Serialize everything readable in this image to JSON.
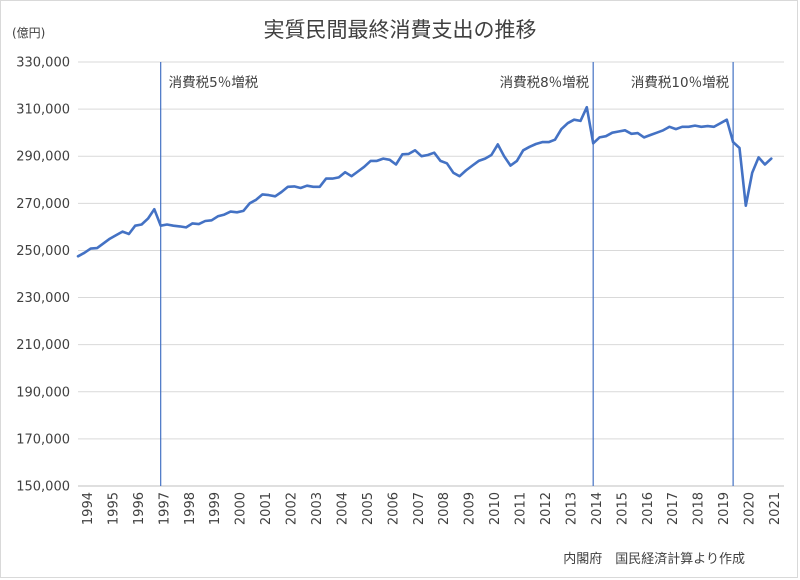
{
  "chart_data": {
    "type": "line",
    "title": "実質民間最終消費支出の推移",
    "unit_label": "(億円)",
    "source": "内閣府　国民経済計算より作成",
    "ylim": [
      150000,
      330000
    ],
    "yticks": [
      "150,000",
      "170,000",
      "190,000",
      "210,000",
      "230,000",
      "250,000",
      "270,000",
      "290,000",
      "310,000",
      "330,000"
    ],
    "ytick_values": [
      150000,
      170000,
      190000,
      210000,
      230000,
      250000,
      270000,
      290000,
      310000,
      330000
    ],
    "xlim": [
      1994,
      2021.75
    ],
    "xticks": [
      "1994",
      "1995",
      "1996",
      "1997",
      "1998",
      "1999",
      "2000",
      "2001",
      "2002",
      "2003",
      "2004",
      "2005",
      "2006",
      "2007",
      "2008",
      "2009",
      "2010",
      "2011",
      "2012",
      "2013",
      "2014",
      "2015",
      "2016",
      "2017",
      "2018",
      "2019",
      "2020",
      "2021"
    ],
    "grid": "horizontal",
    "line_color": "#4472c4",
    "annotations": [
      {
        "label": "消費税5％増税",
        "x": 1997.25
      },
      {
        "label": "消費税8％増税",
        "x": 2014.25
      },
      {
        "label": "消費税10％増税",
        "x": 2019.75
      }
    ],
    "series": [
      {
        "values": [
          247500,
          249000,
          250800,
          251000,
          253000,
          255000,
          256500,
          258000,
          257000,
          260500,
          261000,
          263500,
          267500,
          260500,
          261000,
          260500,
          260200,
          259800,
          261500,
          261200,
          262500,
          262800,
          264500,
          265200,
          266500,
          266200,
          266800,
          270000,
          271500,
          273800,
          273500,
          273000,
          274800,
          277000,
          277200,
          276500,
          277500,
          277000,
          277000,
          280500,
          280500,
          281000,
          283200,
          281500,
          283500,
          285500,
          288000,
          288000,
          289000,
          288500,
          286500,
          290800,
          291000,
          292500,
          290000,
          290500,
          291500,
          288000,
          287000,
          283000,
          281500,
          284000,
          286000,
          288000,
          289000,
          290500,
          295000,
          290000,
          286000,
          288000,
          292500,
          294000,
          295200,
          296000,
          296000,
          297000,
          301500,
          304000,
          305500,
          305000,
          310800,
          295500,
          298000,
          298500,
          300000,
          300500,
          301000,
          299500,
          299800,
          298000,
          299000,
          300000,
          301000,
          302500,
          301500,
          302500,
          302500,
          303000,
          302500,
          302800,
          302500,
          304000,
          305500,
          296000,
          293500,
          269000,
          283000,
          289500,
          286500,
          289000
        ]
      }
    ]
  }
}
